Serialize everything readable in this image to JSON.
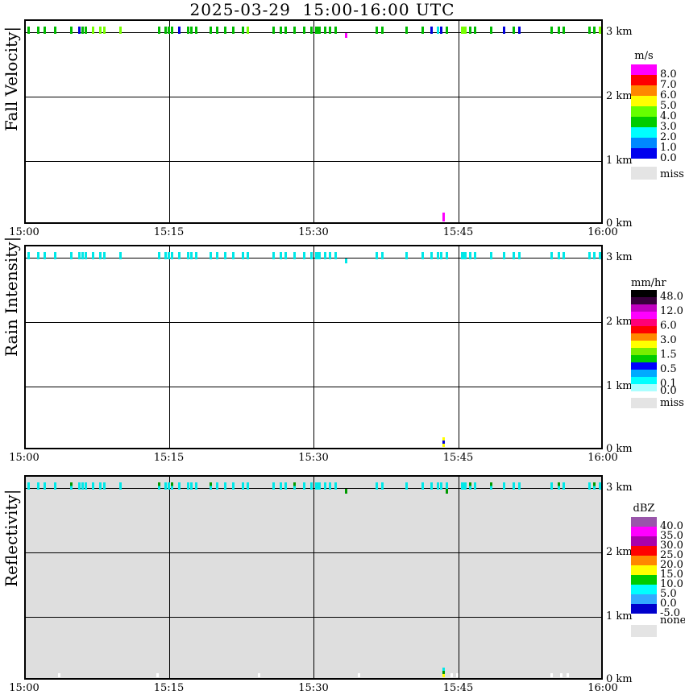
{
  "title": "2025-03-29  15:00-16:00 UTC",
  "axes": {
    "x_tick_labels": [
      "15:00",
      "15:15",
      "15:30",
      "15:45",
      "16:00"
    ],
    "x_range_minutes": [
      0,
      60
    ],
    "y_tick_labels": [
      "3 km",
      "2 km",
      "1 km",
      "0 km"
    ],
    "y_range_km": [
      0,
      3
    ],
    "grid": "on"
  },
  "color_key": {
    "g": "#00BB00",
    "G": "#00BB00",
    "l": "#77FF00",
    "L": "#77FF00",
    "b": "#0000DD",
    "c": "#00E8E8",
    "C": "#00E8E8",
    "m": "#FF00FF",
    "d": "#009900",
    "Y": "#FFFF00",
    "w": "#FFFFFF",
    "gc": "two-tone green over cyan"
  },
  "chart_data": [
    {
      "type": "heatmap",
      "title": "Fall Velocity",
      "ylabel": "Fall Velocity|",
      "units": "m/s",
      "background": "white",
      "legend": {
        "title": "m/s",
        "cells": [
          {
            "color": "#FF00FF",
            "label": "8.0"
          },
          {
            "color": "#FF0000",
            "label": "7.0"
          },
          {
            "color": "#FF8800",
            "label": "6.0"
          },
          {
            "color": "#FFFF00",
            "label": "5.0"
          },
          {
            "color": "#66FF00",
            "label": "4.0"
          },
          {
            "color": "#00CC00",
            "label": "3.0"
          },
          {
            "color": "#00FFFF",
            "label": "2.0"
          },
          {
            "color": "#0088FF",
            "label": "1.0"
          },
          {
            "color": "#0000EE",
            "label": "0.0"
          }
        ],
        "missing": {
          "color": "#E4E4E4",
          "label": "miss"
        }
      },
      "key_values_mps": {
        "g": "3.0-4.0",
        "l": "4.0-5.0",
        "b": "0.0-1.0",
        "c": "2.0-3.0",
        "m": "8.0"
      },
      "marks_3km": [
        [
          0.3,
          "g"
        ],
        [
          1.3,
          "g"
        ],
        [
          2,
          "g"
        ],
        [
          3.1,
          "g"
        ],
        [
          4.8,
          "g"
        ],
        [
          5.6,
          "b"
        ],
        [
          5.9,
          "g"
        ],
        [
          6.3,
          "g"
        ],
        [
          7,
          "l"
        ],
        [
          7.8,
          "l"
        ],
        [
          8.2,
          "l"
        ],
        [
          9.9,
          "l"
        ],
        [
          13.9,
          "g"
        ],
        [
          14.5,
          "g"
        ],
        [
          14.9,
          "g"
        ],
        [
          15.2,
          "g"
        ],
        [
          16,
          "b"
        ],
        [
          16.9,
          "g"
        ],
        [
          17.2,
          "g"
        ],
        [
          17.7,
          "g"
        ],
        [
          19.2,
          "g"
        ],
        [
          19.9,
          "g"
        ],
        [
          20.7,
          "g"
        ],
        [
          21.6,
          "g"
        ],
        [
          22.6,
          "g"
        ],
        [
          23.1,
          "l"
        ],
        [
          25.7,
          "g"
        ],
        [
          26.5,
          "g"
        ],
        [
          27,
          "g"
        ],
        [
          27.9,
          "g"
        ],
        [
          28.9,
          "g"
        ],
        [
          29.7,
          "g"
        ],
        [
          30.3,
          "G"
        ],
        [
          31.1,
          "g"
        ],
        [
          31.6,
          "g"
        ],
        [
          32.2,
          "g"
        ],
        [
          36.4,
          "g"
        ],
        [
          37,
          "g"
        ],
        [
          39.5,
          "g"
        ],
        [
          41.2,
          "g"
        ],
        [
          42.1,
          "b"
        ],
        [
          42.8,
          "c"
        ],
        [
          43.1,
          "b"
        ],
        [
          43.7,
          "g"
        ],
        [
          45.5,
          "L"
        ],
        [
          46.1,
          "g"
        ],
        [
          46.6,
          "g"
        ],
        [
          48.3,
          "g"
        ],
        [
          49.6,
          "b"
        ],
        [
          50.6,
          "g"
        ],
        [
          51.2,
          "b"
        ],
        [
          54.6,
          "g"
        ],
        [
          55.3,
          "g"
        ],
        [
          55.8,
          "g"
        ],
        [
          58.5,
          "g"
        ],
        [
          59,
          "g"
        ],
        [
          59.6,
          "l"
        ]
      ],
      "marks_3km_below": [
        [
          33.3,
          "m"
        ]
      ],
      "marks_low": [
        {
          "t": 43.4,
          "h_km": 0.1,
          "segments": [
            "m"
          ],
          "seg_h": 11
        }
      ]
    },
    {
      "type": "heatmap",
      "title": "Rain Intensity",
      "ylabel": "Rain Intensity|",
      "units": "mm/hr",
      "background": "white",
      "legend": {
        "title": "mm/hr",
        "cells": [
          {
            "color": "#000000",
            "label": "48.0"
          },
          {
            "color": "#38003C",
            "label": ""
          },
          {
            "color": "#C000C0",
            "label": "12.0"
          },
          {
            "color": "#FF00FF",
            "label": ""
          },
          {
            "color": "#FF0077",
            "label": "6.0"
          },
          {
            "color": "#FF0000",
            "label": ""
          },
          {
            "color": "#FF8800",
            "label": "3.0"
          },
          {
            "color": "#FFFF00",
            "label": ""
          },
          {
            "color": "#77EE00",
            "label": "1.5"
          },
          {
            "color": "#00CC00",
            "label": ""
          },
          {
            "color": "#0000FF",
            "label": "0.5"
          },
          {
            "color": "#00AAFF",
            "label": ""
          },
          {
            "color": "#00FFFF",
            "label": "0.1"
          },
          {
            "color": "#AAFFFF",
            "label": "0.0"
          }
        ],
        "missing": {
          "color": "#E4E4E4",
          "label": "miss"
        }
      },
      "key_values_mmhr": {
        "c": "0.0-0.1",
        "Y": "1.5-3.0",
        "b": "0.5-1.0"
      },
      "marks_3km": [
        [
          0.3,
          "c"
        ],
        [
          1.3,
          "c"
        ],
        [
          2,
          "c"
        ],
        [
          3.1,
          "c"
        ],
        [
          4.8,
          "c"
        ],
        [
          5.6,
          "c"
        ],
        [
          5.9,
          "c"
        ],
        [
          6.3,
          "c"
        ],
        [
          7,
          "c"
        ],
        [
          7.8,
          "c"
        ],
        [
          8.2,
          "c"
        ],
        [
          9.9,
          "c"
        ],
        [
          13.9,
          "c"
        ],
        [
          14.5,
          "c"
        ],
        [
          14.9,
          "c"
        ],
        [
          15.2,
          "c"
        ],
        [
          16,
          "c"
        ],
        [
          16.9,
          "c"
        ],
        [
          17.2,
          "c"
        ],
        [
          17.7,
          "c"
        ],
        [
          19.2,
          "c"
        ],
        [
          19.9,
          "c"
        ],
        [
          20.7,
          "c"
        ],
        [
          21.6,
          "c"
        ],
        [
          22.6,
          "c"
        ],
        [
          23.1,
          "c"
        ],
        [
          25.7,
          "c"
        ],
        [
          26.5,
          "c"
        ],
        [
          27,
          "c"
        ],
        [
          27.9,
          "c"
        ],
        [
          28.9,
          "c"
        ],
        [
          29.7,
          "c"
        ],
        [
          30.3,
          "C"
        ],
        [
          31.1,
          "c"
        ],
        [
          31.6,
          "c"
        ],
        [
          32.2,
          "c"
        ],
        [
          36.4,
          "c"
        ],
        [
          37,
          "c"
        ],
        [
          39.5,
          "c"
        ],
        [
          41.2,
          "c"
        ],
        [
          42.1,
          "c"
        ],
        [
          42.8,
          "c"
        ],
        [
          43.1,
          "c"
        ],
        [
          43.7,
          "c"
        ],
        [
          45.5,
          "C"
        ],
        [
          46.1,
          "c"
        ],
        [
          46.6,
          "c"
        ],
        [
          48.3,
          "c"
        ],
        [
          49.6,
          "c"
        ],
        [
          50.6,
          "c"
        ],
        [
          51.2,
          "c"
        ],
        [
          54.6,
          "c"
        ],
        [
          55.3,
          "c"
        ],
        [
          55.8,
          "c"
        ],
        [
          58.5,
          "c"
        ],
        [
          59,
          "c"
        ],
        [
          59.6,
          "c"
        ]
      ],
      "marks_3km_below": [
        [
          33.3,
          "c"
        ]
      ],
      "marks_low": [
        {
          "t": 43.4,
          "h_km": 0.1,
          "segments": [
            "Y",
            "b",
            "Y"
          ],
          "seg_h": 4
        }
      ]
    },
    {
      "type": "heatmap",
      "title": "Reflectivity",
      "ylabel": "Reflectivity|",
      "units": "dBZ",
      "background": "gray",
      "legend": {
        "title": "dBZ",
        "cells": [
          {
            "color": "#9955AA",
            "label": "40.0"
          },
          {
            "color": "#FF00FF",
            "label": "35.0"
          },
          {
            "color": "#AA00AA",
            "label": "30.0"
          },
          {
            "color": "#FF0000",
            "label": "25.0"
          },
          {
            "color": "#FF8800",
            "label": "20.0"
          },
          {
            "color": "#FFFF00",
            "label": "15.0"
          },
          {
            "color": "#00CC00",
            "label": "10.0"
          },
          {
            "color": "#00FFFF",
            "label": "5.0"
          },
          {
            "color": "#33AAFF",
            "label": "0.0"
          },
          {
            "color": "#0000CC",
            "label": "-5.0"
          }
        ],
        "missing": {
          "color": "#E4E4E4",
          "label": "none"
        }
      },
      "key_values_dbz": {
        "c": "5-10",
        "gc": "10-15 over 5-10",
        "d": "10-15",
        "Y": "15-20",
        "w": "missing"
      },
      "marks_3km": [
        [
          0.3,
          "c"
        ],
        [
          1.3,
          "c"
        ],
        [
          2,
          "c"
        ],
        [
          3.1,
          "c"
        ],
        [
          4.8,
          "gc"
        ],
        [
          5.6,
          "c"
        ],
        [
          5.9,
          "c"
        ],
        [
          6.3,
          "c"
        ],
        [
          7,
          "c"
        ],
        [
          7.8,
          "c"
        ],
        [
          8.2,
          "c"
        ],
        [
          9.9,
          "c"
        ],
        [
          13.9,
          "gc"
        ],
        [
          14.5,
          "c"
        ],
        [
          14.9,
          "c"
        ],
        [
          15.2,
          "gc"
        ],
        [
          16,
          "c"
        ],
        [
          16.9,
          "c"
        ],
        [
          17.2,
          "c"
        ],
        [
          17.7,
          "c"
        ],
        [
          19.2,
          "gc"
        ],
        [
          19.9,
          "c"
        ],
        [
          20.7,
          "c"
        ],
        [
          21.6,
          "c"
        ],
        [
          22.6,
          "c"
        ],
        [
          23.1,
          "c"
        ],
        [
          25.7,
          "c"
        ],
        [
          26.5,
          "c"
        ],
        [
          27,
          "c"
        ],
        [
          27.9,
          "gc"
        ],
        [
          28.9,
          "c"
        ],
        [
          29.7,
          "c"
        ],
        [
          30.3,
          "C"
        ],
        [
          31.1,
          "c"
        ],
        [
          31.6,
          "c"
        ],
        [
          32.2,
          "c"
        ],
        [
          36.4,
          "c"
        ],
        [
          37,
          "c"
        ],
        [
          39.5,
          "c"
        ],
        [
          41.2,
          "c"
        ],
        [
          42.1,
          "c"
        ],
        [
          42.8,
          "c"
        ],
        [
          43.1,
          "c"
        ],
        [
          43.7,
          "c"
        ],
        [
          45.5,
          "C"
        ],
        [
          46.1,
          "gc"
        ],
        [
          46.6,
          "c"
        ],
        [
          48.3,
          "gc"
        ],
        [
          49.6,
          "c"
        ],
        [
          50.6,
          "c"
        ],
        [
          51.2,
          "c"
        ],
        [
          54.6,
          "c"
        ],
        [
          55.3,
          "gc"
        ],
        [
          55.8,
          "c"
        ],
        [
          58.5,
          "c"
        ],
        [
          59,
          "gc"
        ],
        [
          59.6,
          "c"
        ]
      ],
      "marks_3km_below": [
        [
          33.3,
          "d"
        ],
        [
          43.7,
          "d"
        ]
      ],
      "marks_low": [
        {
          "t": 43.4,
          "h_km": 0.1,
          "segments": [
            "c",
            "d",
            "Y"
          ],
          "seg_h": 4
        },
        {
          "t": 3.5,
          "h_km": 0.05,
          "segments": [
            "w"
          ],
          "seg_h": 5
        },
        {
          "t": 13.7,
          "h_km": 0.05,
          "segments": [
            "w"
          ],
          "seg_h": 5
        },
        {
          "t": 24.2,
          "h_km": 0.05,
          "segments": [
            "w"
          ],
          "seg_h": 5
        },
        {
          "t": 34.6,
          "h_km": 0.05,
          "segments": [
            "w"
          ],
          "seg_h": 5
        },
        {
          "t": 44.2,
          "h_km": 0.05,
          "segments": [
            "w"
          ],
          "seg_h": 5
        },
        {
          "t": 44.8,
          "h_km": 0.05,
          "segments": [
            "w"
          ],
          "seg_h": 5
        },
        {
          "t": 54.6,
          "h_km": 0.05,
          "segments": [
            "w"
          ],
          "seg_h": 5
        },
        {
          "t": 55.6,
          "h_km": 0.05,
          "segments": [
            "w"
          ],
          "seg_h": 5
        },
        {
          "t": 56.2,
          "h_km": 0.05,
          "segments": [
            "w"
          ],
          "seg_h": 5
        }
      ]
    }
  ]
}
